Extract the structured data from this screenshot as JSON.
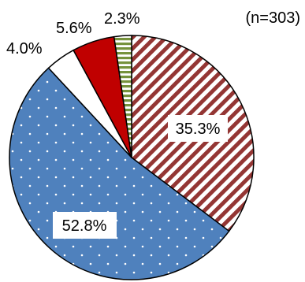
{
  "chart_data": {
    "type": "pie",
    "note": "(n=303)",
    "start_angle_deg": 0,
    "direction": "clockwise",
    "slices": [
      {
        "value": 35.3,
        "label": "35.3%",
        "color": "#943634",
        "pattern": "diagonal-stripes"
      },
      {
        "value": 52.8,
        "label": "52.8%",
        "color": "#4f81bd",
        "pattern": "dots"
      },
      {
        "value": 4.0,
        "label": "4.0%",
        "color": "#ffffff",
        "pattern": "none"
      },
      {
        "value": 5.6,
        "label": "5.6%",
        "color": "#c00000",
        "pattern": "none"
      },
      {
        "value": 2.3,
        "label": "2.3%",
        "color": "#76923c",
        "pattern": "horizontal-stripes"
      }
    ]
  }
}
